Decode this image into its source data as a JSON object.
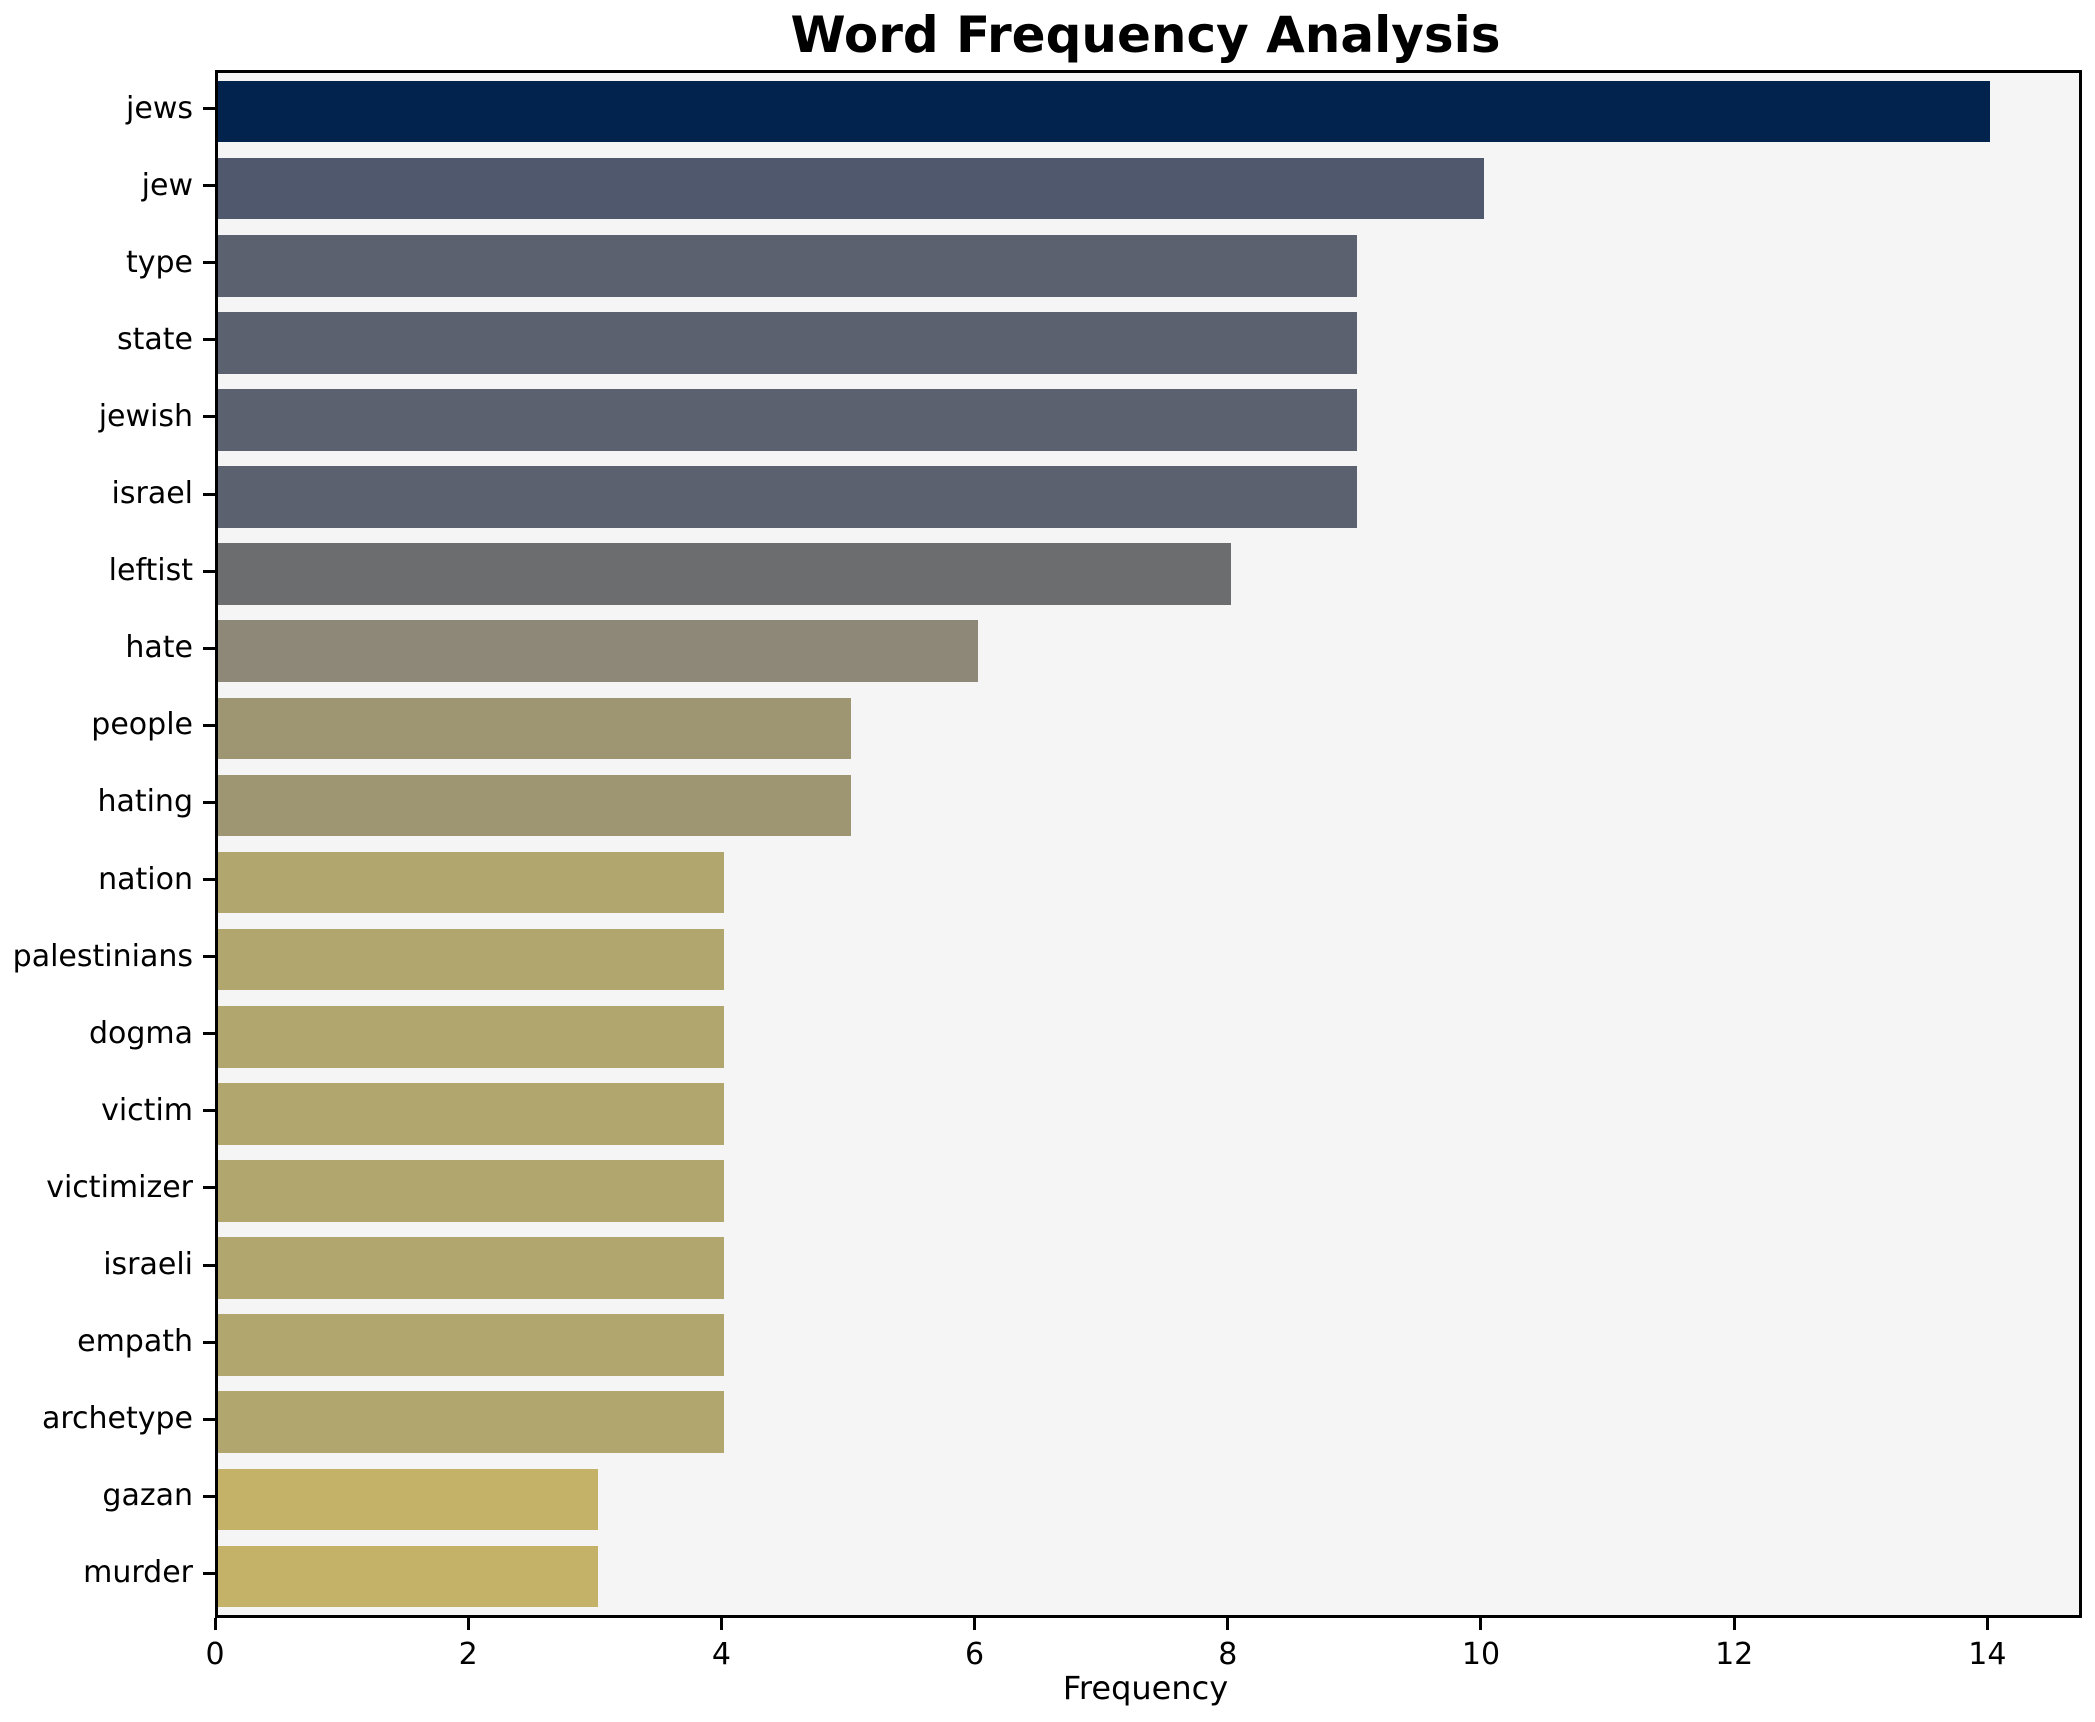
{
  "chart": {
    "title": "Word Frequency Analysis",
    "xlabel": "Frequency"
  },
  "chart_data": {
    "type": "bar",
    "orientation": "horizontal",
    "title": "Word Frequency Analysis",
    "xlabel": "Frequency",
    "ylabel": "",
    "categories": [
      "jews",
      "jew",
      "type",
      "state",
      "jewish",
      "israel",
      "leftist",
      "hate",
      "people",
      "hating",
      "nation",
      "palestinians",
      "dogma",
      "victim",
      "victimizer",
      "israeli",
      "empath",
      "archetype",
      "gazan",
      "murder"
    ],
    "values": [
      14,
      10,
      9,
      9,
      9,
      9,
      8,
      6,
      5,
      5,
      4,
      4,
      4,
      4,
      4,
      4,
      4,
      4,
      3,
      3
    ],
    "bar_colors": [
      "#02234e",
      "#50586e",
      "#5b616e",
      "#5b616e",
      "#5b616e",
      "#5b616e",
      "#6c6d6f",
      "#8d8877",
      "#9e9673",
      "#9e9673",
      "#b1a76e",
      "#b1a76e",
      "#b1a76e",
      "#b1a76e",
      "#b1a76e",
      "#b1a76e",
      "#b1a76e",
      "#b1a76e",
      "#c4b269",
      "#c4b269"
    ],
    "xlim": [
      0,
      14.7
    ],
    "xticks": [
      0,
      2,
      4,
      6,
      8,
      10,
      12,
      14
    ],
    "grid": false,
    "legend_position": "none",
    "bar_height_ratio": 0.8,
    "plot_background": "#f5f5f6",
    "figure_background": "#ffffff",
    "spine_color": "#000000",
    "colormap_note": "cividis reversed (high value = dark navy, low value = khaki)"
  }
}
